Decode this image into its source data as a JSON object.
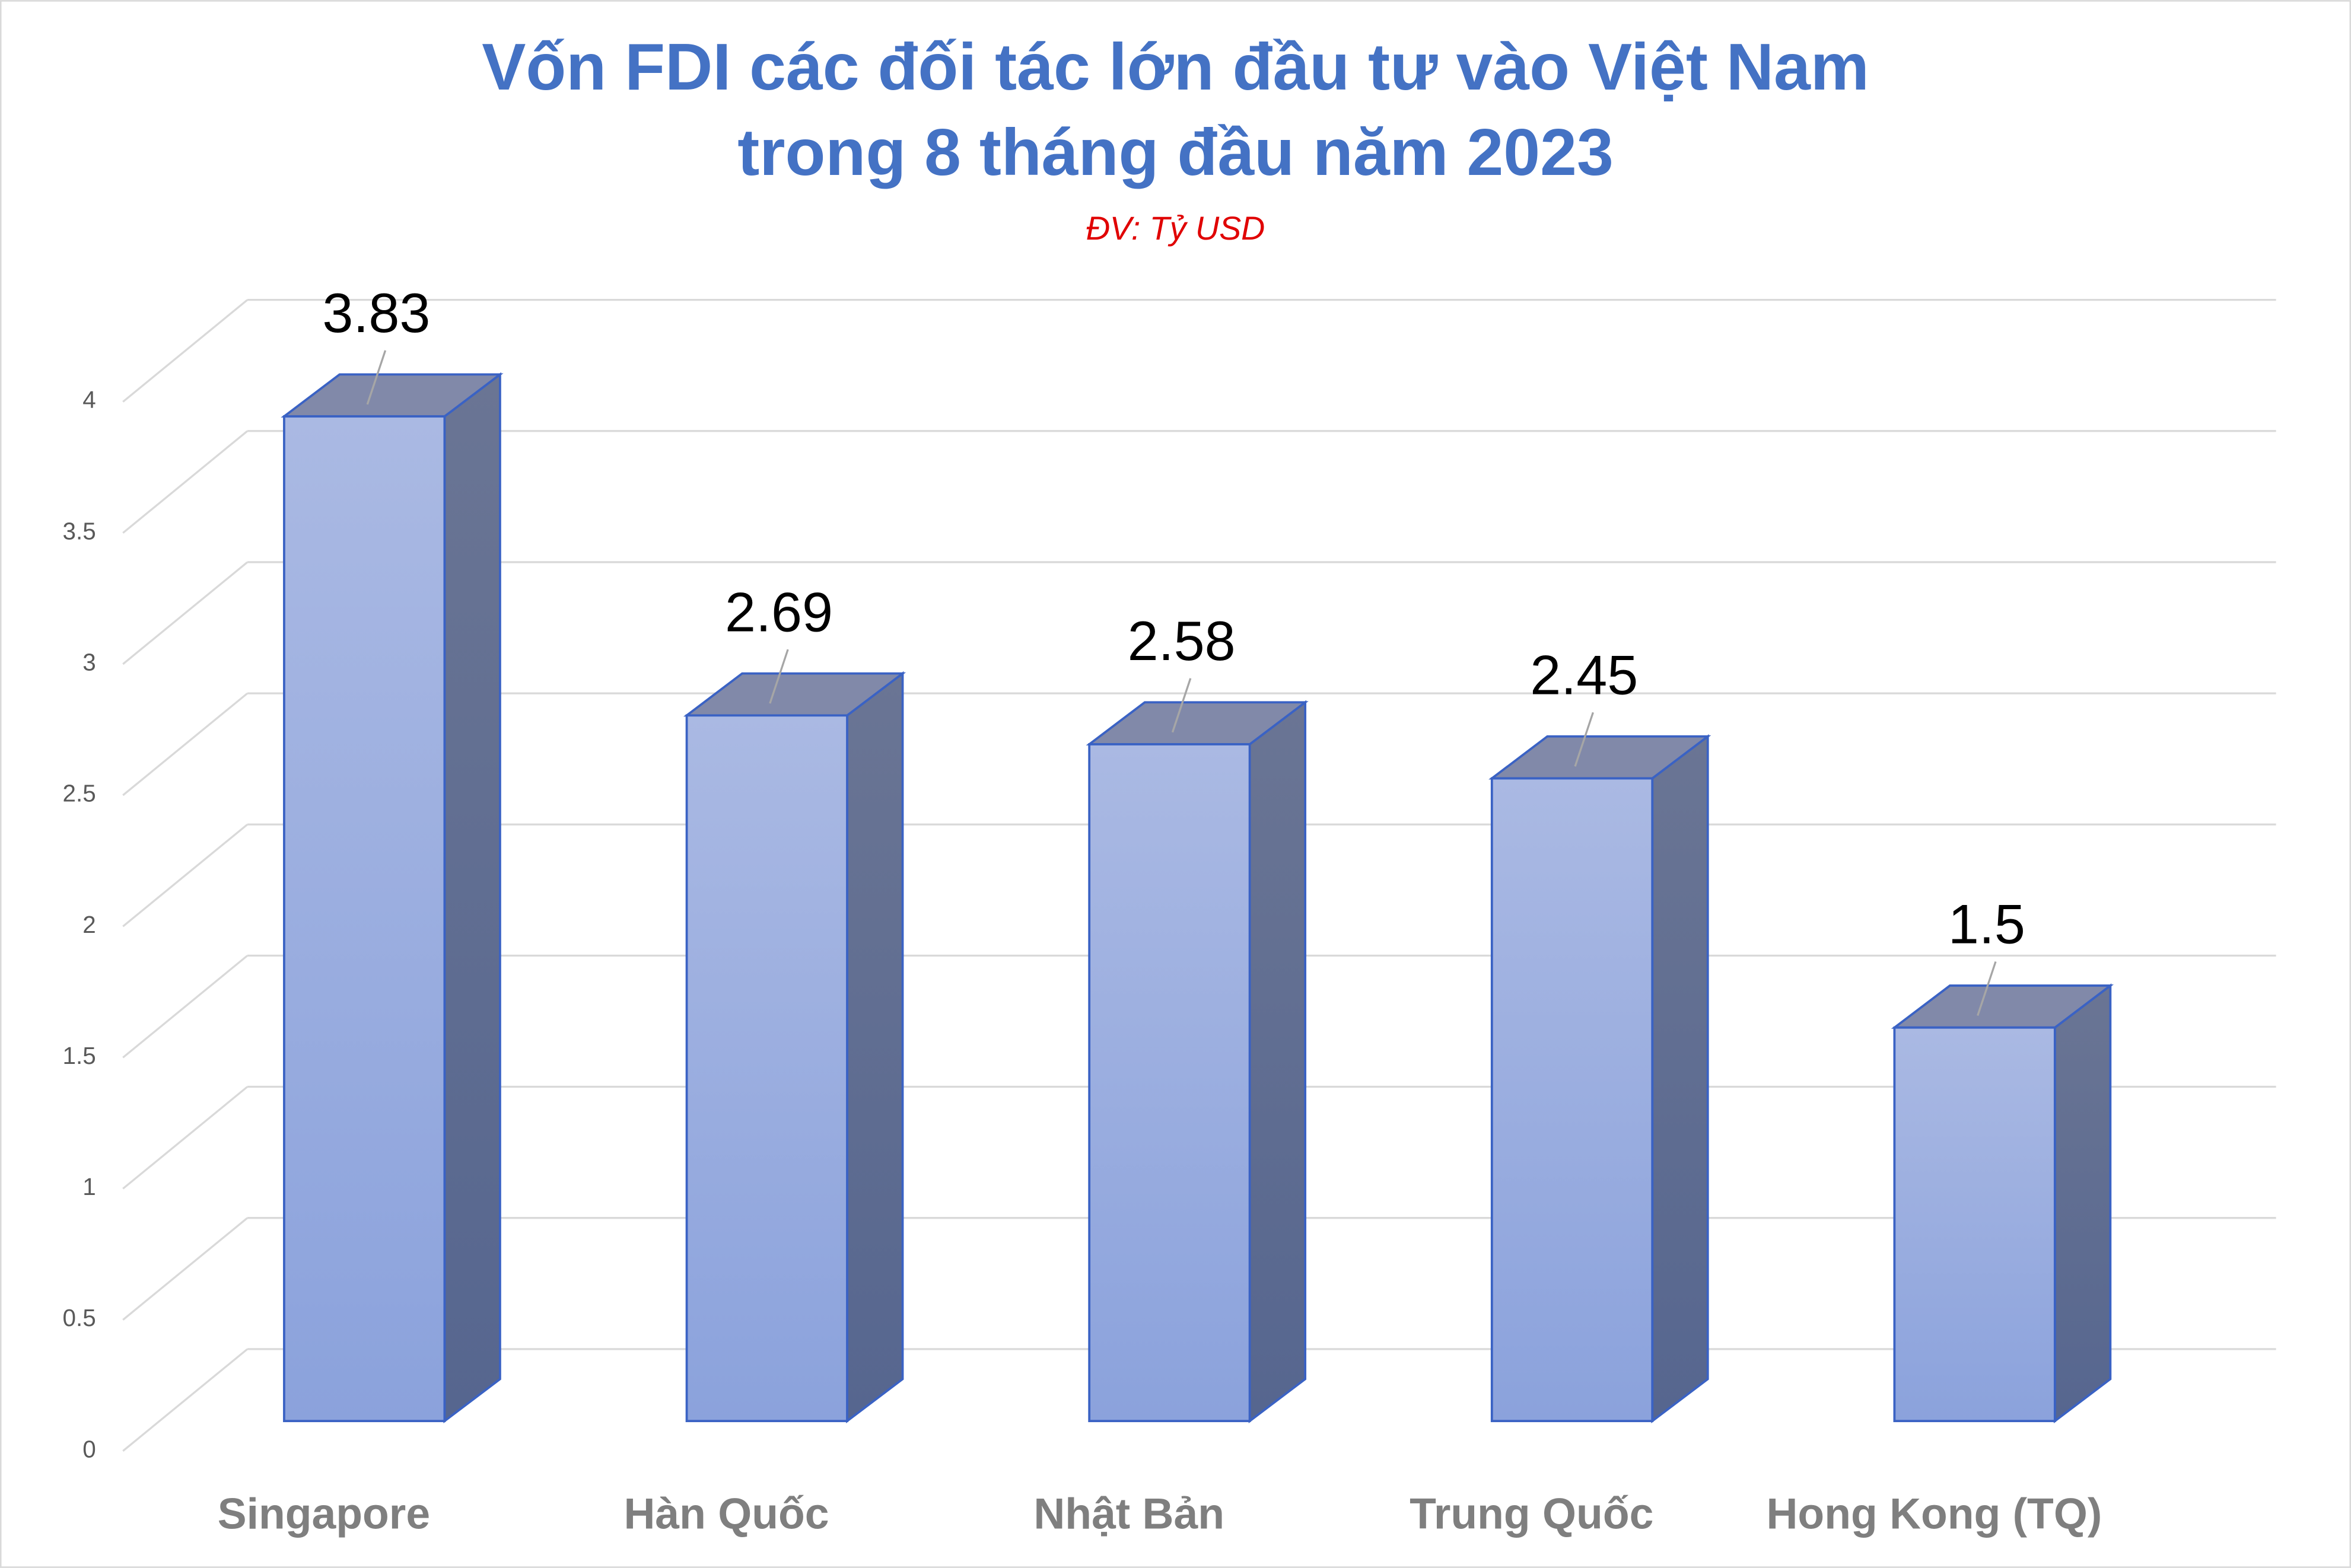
{
  "chart_data": {
    "type": "bar3d",
    "title": [
      "Vốn FDI các đối tác lớn đầu tư vào Việt Nam",
      "trong 8 tháng đầu năm 2023"
    ],
    "subtitle": "ĐV: Tỷ USD",
    "categories": [
      "Singapore",
      "Hàn Quốc",
      "Nhật Bản",
      "Trung Quốc",
      "Hong Kong (TQ)"
    ],
    "values": [
      3.83,
      2.69,
      2.58,
      2.45,
      1.5
    ],
    "color": "#8fa4dc",
    "ylim": [
      0,
      4
    ],
    "yticks": [
      0,
      0.5,
      1,
      1.5,
      2,
      2.5,
      3,
      3.5,
      4
    ],
    "grid": true
  }
}
